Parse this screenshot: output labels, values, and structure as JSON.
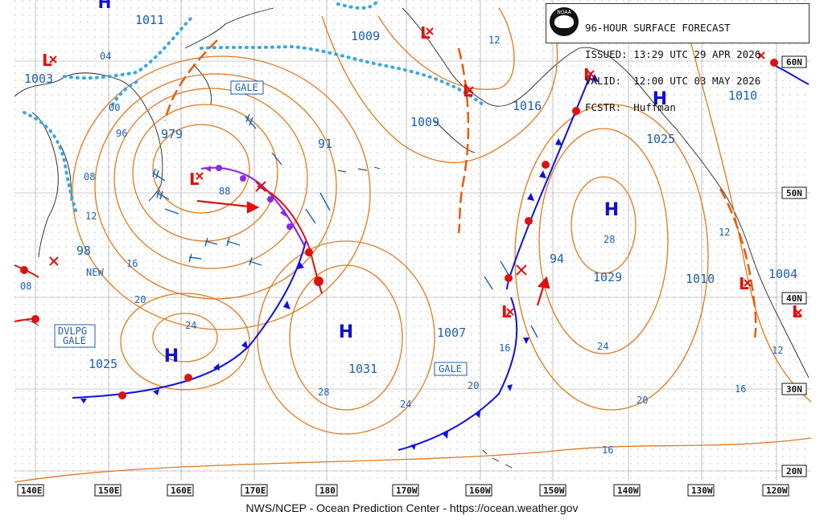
{
  "header": {
    "product": "96-HOUR SURFACE FORECAST",
    "issued": "ISSUED: 13:29 UTC 29 APR 2026",
    "valid": "VALID:  12:00 UTC 03 MAY 2026",
    "forecaster": "FCSTR:  Huffman",
    "logo_text": "NOAA"
  },
  "footer": {
    "credit": "NWS/NCEP - Ocean Prediction Center - https://ocean.weather.gov"
  },
  "axis": {
    "longitudes": [
      "140E",
      "150E",
      "160E",
      "170E",
      "180",
      "170W",
      "160W",
      "150W",
      "140W",
      "130W",
      "120W"
    ],
    "latitudes": [
      "60N",
      "50N",
      "40N",
      "30N",
      "20N"
    ]
  },
  "colors": {
    "isobar": "#e07a1c",
    "label": "#1d5fb0",
    "low": "#e01010",
    "high": "#1010d0",
    "cold_front": "#1010e0",
    "warm_front": "#e01010",
    "occluded_front": "#8a2be2",
    "ice_edge": "#3aa8e0",
    "trough": "#e85a10"
  },
  "pressure_labels": [
    "1011",
    "1003",
    "1009",
    "1009",
    "1016",
    "1010",
    "1025",
    "979",
    "91",
    "98",
    "1025",
    "1031",
    "1007",
    "94",
    "1029",
    "1010",
    "1004"
  ],
  "isobar_values": [
    "04",
    "00",
    "96",
    "08",
    "12",
    "16",
    "20",
    "24",
    "28",
    "88",
    "12",
    "16",
    "20",
    "24",
    "28",
    "24",
    "20",
    "16",
    "16",
    "12",
    "28",
    "12",
    "20",
    "08"
  ],
  "centers": [
    "H",
    "L",
    "L",
    "H",
    "L",
    "L",
    "H",
    "L",
    "H",
    "H",
    "L",
    "L",
    "H",
    "L"
  ],
  "boxes": [
    "GALE",
    "GALE",
    "DVLPG\nGALE"
  ],
  "new_label": "NEW"
}
